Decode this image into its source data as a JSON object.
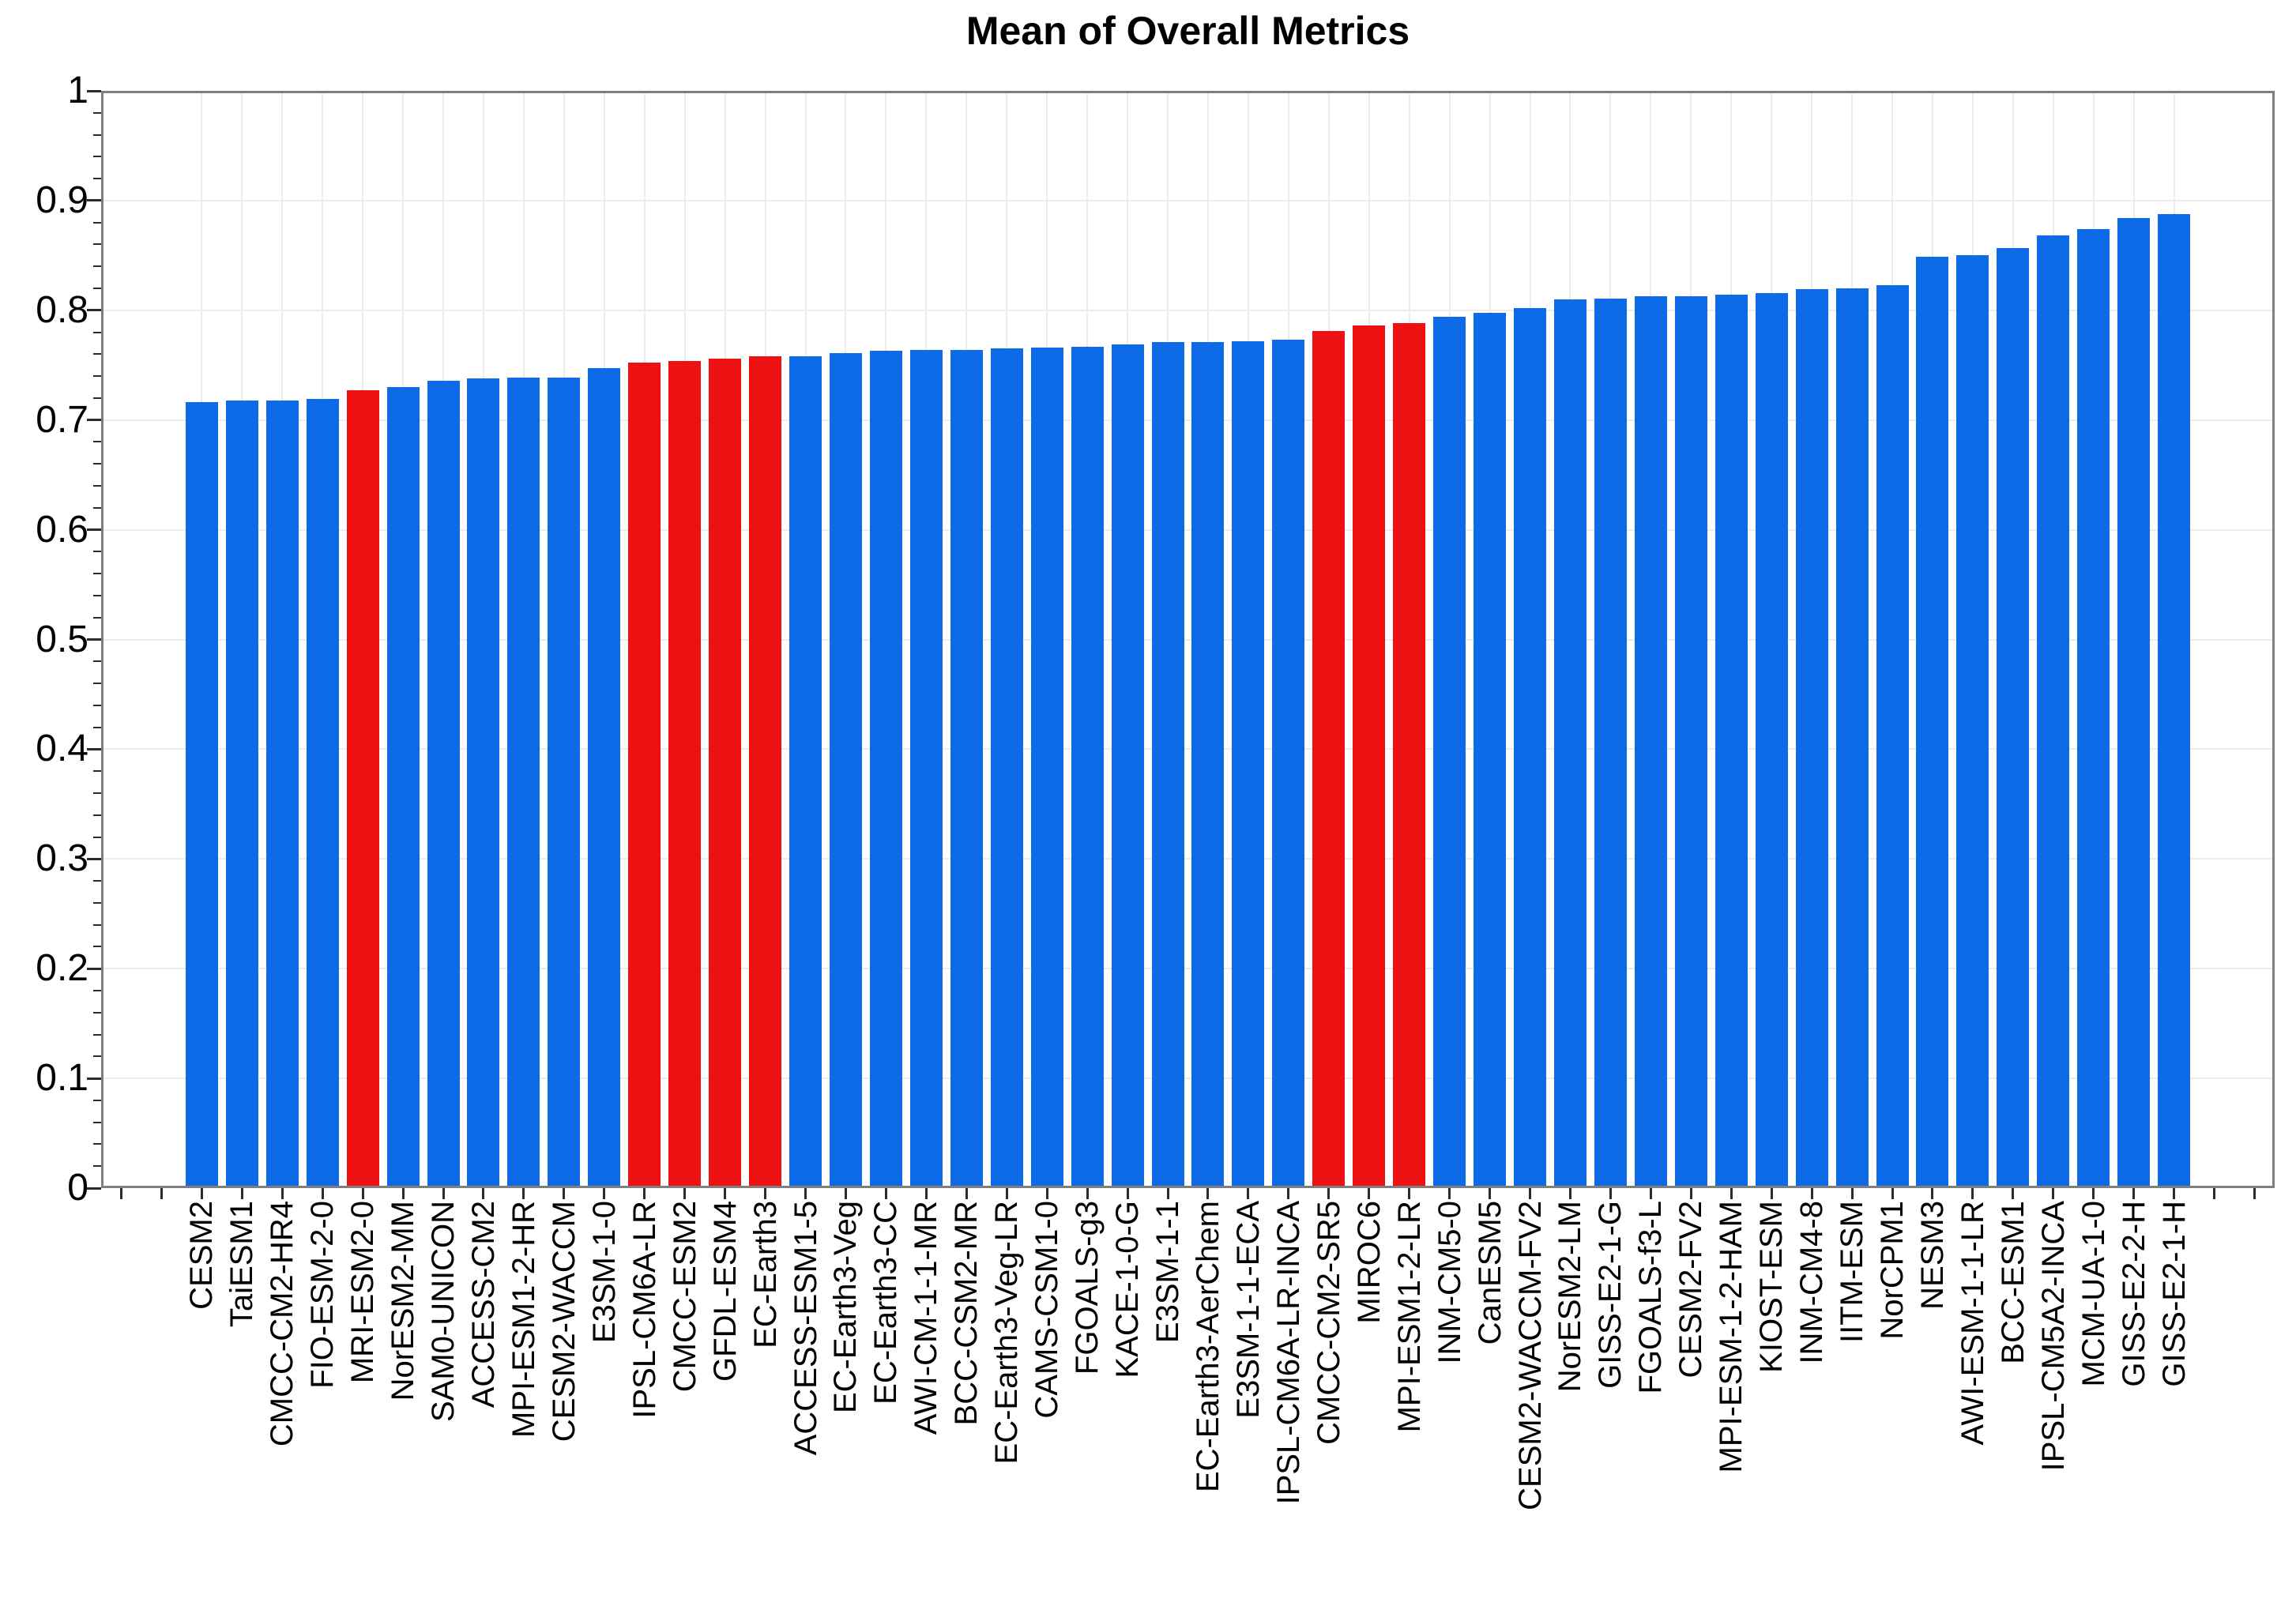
{
  "chart_data": {
    "type": "bar",
    "title": "Mean of Overall Metrics",
    "xlabel": "",
    "ylabel": "",
    "ylim": [
      0,
      1
    ],
    "grid": true,
    "ytick_labels": [
      "0",
      "0.1",
      "0.2",
      "0.3",
      "0.4",
      "0.5",
      "0.6",
      "0.7",
      "0.8",
      "0.9",
      "1"
    ],
    "categories": [
      "CESM2",
      "TaiESM1",
      "CMCC-CM2-HR4",
      "FIO-ESM-2-0",
      "MRI-ESM2-0",
      "NorESM2-MM",
      "SAM0-UNICON",
      "ACCESS-CM2",
      "MPI-ESM1-2-HR",
      "CESM2-WACCM",
      "E3SM-1-0",
      "IPSL-CM6A-LR",
      "CMCC-ESM2",
      "GFDL-ESM4",
      "EC-Earth3",
      "ACCESS-ESM1-5",
      "EC-Earth3-Veg",
      "EC-Earth3-CC",
      "AWI-CM-1-1-MR",
      "BCC-CSM2-MR",
      "EC-Earth3-Veg-LR",
      "CAMS-CSM1-0",
      "FGOALS-g3",
      "KACE-1-0-G",
      "E3SM-1-1",
      "EC-Earth3-AerChem",
      "E3SM-1-1-ECA",
      "IPSL-CM6A-LR-INCA",
      "CMCC-CM2-SR5",
      "MIROC6",
      "MPI-ESM1-2-LR",
      "INM-CM5-0",
      "CanESM5",
      "CESM2-WACCM-FV2",
      "NorESM2-LM",
      "GISS-E2-1-G",
      "FGOALS-f3-L",
      "CESM2-FV2",
      "MPI-ESM-1-2-HAM",
      "KIOST-ESM",
      "INM-CM4-8",
      "IITM-ESM",
      "NorCPM1",
      "NESM3",
      "AWI-ESM-1-1-LR",
      "BCC-ESM1",
      "IPSL-CM5A2-INCA",
      "MCM-UA-1-0",
      "GISS-E2-2-H",
      "GISS-E2-1-H"
    ],
    "values": [
      0.716,
      0.718,
      0.718,
      0.719,
      0.727,
      0.73,
      0.736,
      0.738,
      0.739,
      0.739,
      0.747,
      0.752,
      0.754,
      0.756,
      0.758,
      0.758,
      0.761,
      0.763,
      0.764,
      0.764,
      0.765,
      0.766,
      0.767,
      0.769,
      0.771,
      0.771,
      0.772,
      0.773,
      0.781,
      0.786,
      0.788,
      0.794,
      0.798,
      0.802,
      0.81,
      0.811,
      0.813,
      0.813,
      0.814,
      0.816,
      0.819,
      0.82,
      0.823,
      0.849,
      0.85,
      0.857,
      0.868,
      0.874,
      0.884,
      0.888
    ],
    "highlighted_indices": [
      4,
      11,
      12,
      13,
      14,
      28,
      29,
      30
    ],
    "legend": [],
    "colors": {
      "bar_default": "#0e6be8",
      "bar_highlight": "#ee1111",
      "grid": "#ececec",
      "axis_frame": "#7f7f7f",
      "tick": "#2b2b2b",
      "text": "#000000"
    }
  }
}
